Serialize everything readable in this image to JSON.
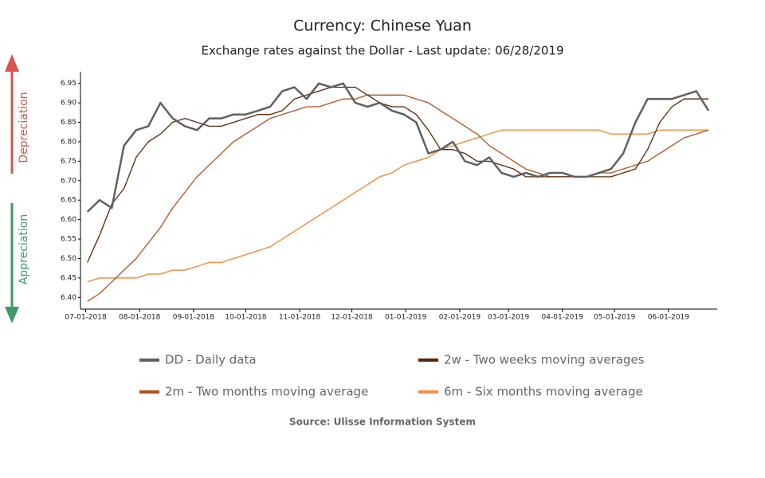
{
  "chart_data": {
    "type": "line",
    "title": "Currency: Chinese Yuan",
    "subtitle": "Exchange rates against the Dollar - Last update: 06/28/2019",
    "source": "Source: Ulisse Information System",
    "up_label": "Depreciation",
    "down_label": "Appreciation",
    "x": [
      "2018-07-02",
      "2018-07-09",
      "2018-07-16",
      "2018-07-23",
      "2018-07-30",
      "2018-08-06",
      "2018-08-13",
      "2018-08-20",
      "2018-08-27",
      "2018-09-03",
      "2018-09-10",
      "2018-09-17",
      "2018-09-24",
      "2018-10-01",
      "2018-10-08",
      "2018-10-15",
      "2018-10-22",
      "2018-10-29",
      "2018-11-05",
      "2018-11-12",
      "2018-11-19",
      "2018-11-26",
      "2018-12-03",
      "2018-12-10",
      "2018-12-17",
      "2018-12-24",
      "2018-12-31",
      "2019-01-07",
      "2019-01-14",
      "2019-01-21",
      "2019-01-28",
      "2019-02-04",
      "2019-02-11",
      "2019-02-18",
      "2019-02-25",
      "2019-03-04",
      "2019-03-11",
      "2019-03-18",
      "2019-03-25",
      "2019-04-01",
      "2019-04-08",
      "2019-04-15",
      "2019-04-22",
      "2019-04-29",
      "2019-05-06",
      "2019-05-13",
      "2019-05-20",
      "2019-05-27",
      "2019-06-03",
      "2019-06-10",
      "2019-06-17",
      "2019-06-24"
    ],
    "series": [
      {
        "name": "DD - Daily data",
        "color": "#606060",
        "width": 2.5,
        "values": [
          6.62,
          6.65,
          6.63,
          6.79,
          6.83,
          6.84,
          6.9,
          6.86,
          6.84,
          6.83,
          6.86,
          6.86,
          6.87,
          6.87,
          6.88,
          6.89,
          6.93,
          6.94,
          6.91,
          6.95,
          6.94,
          6.95,
          6.9,
          6.89,
          6.9,
          6.88,
          6.87,
          6.85,
          6.77,
          6.78,
          6.8,
          6.75,
          6.74,
          6.76,
          6.72,
          6.71,
          6.72,
          6.71,
          6.72,
          6.72,
          6.71,
          6.71,
          6.72,
          6.73,
          6.77,
          6.85,
          6.91,
          6.91,
          6.91,
          6.92,
          6.93,
          6.88
        ]
      },
      {
        "name": "2w - Two weeks moving averages",
        "color": "#5a2609",
        "width": 1.3,
        "values": [
          6.49,
          6.56,
          6.64,
          6.68,
          6.76,
          6.8,
          6.82,
          6.85,
          6.86,
          6.85,
          6.84,
          6.84,
          6.85,
          6.86,
          6.87,
          6.87,
          6.88,
          6.91,
          6.92,
          6.93,
          6.94,
          6.94,
          6.94,
          6.92,
          6.9,
          6.89,
          6.89,
          6.87,
          6.83,
          6.78,
          6.78,
          6.77,
          6.75,
          6.75,
          6.74,
          6.73,
          6.71,
          6.71,
          6.71,
          6.71,
          6.71,
          6.71,
          6.71,
          6.71,
          6.72,
          6.73,
          6.78,
          6.85,
          6.89,
          6.91,
          6.91,
          6.91
        ]
      },
      {
        "name": "2m - Two months moving average",
        "color": "#b0531c",
        "width": 1.3,
        "values": [
          6.39,
          6.41,
          6.44,
          6.47,
          6.5,
          6.54,
          6.58,
          6.63,
          6.67,
          6.71,
          6.74,
          6.77,
          6.8,
          6.82,
          6.84,
          6.86,
          6.87,
          6.88,
          6.89,
          6.89,
          6.9,
          6.91,
          6.91,
          6.92,
          6.92,
          6.92,
          6.92,
          6.91,
          6.9,
          6.88,
          6.86,
          6.84,
          6.82,
          6.79,
          6.77,
          6.75,
          6.73,
          6.72,
          6.71,
          6.71,
          6.71,
          6.71,
          6.72,
          6.72,
          6.73,
          6.74,
          6.75,
          6.77,
          6.79,
          6.81,
          6.82,
          6.83
        ]
      },
      {
        "name": "6m - Six months moving average",
        "color": "#f39048",
        "width": 1.5,
        "values": [
          6.44,
          6.45,
          6.45,
          6.45,
          6.45,
          6.46,
          6.46,
          6.47,
          6.47,
          6.48,
          6.49,
          6.49,
          6.5,
          6.51,
          6.52,
          6.53,
          6.55,
          6.57,
          6.59,
          6.61,
          6.63,
          6.65,
          6.67,
          6.69,
          6.71,
          6.72,
          6.74,
          6.75,
          6.76,
          6.78,
          6.79,
          6.8,
          6.81,
          6.82,
          6.83,
          6.83,
          6.83,
          6.83,
          6.83,
          6.83,
          6.83,
          6.83,
          6.83,
          6.82,
          6.82,
          6.82,
          6.82,
          6.83,
          6.83,
          6.83,
          6.83,
          6.83
        ]
      }
    ],
    "xlim": [
      "2018-06-28",
      "2019-06-29"
    ],
    "xticks": [
      {
        "value": "2018-07-01",
        "label": "07-01-2018"
      },
      {
        "value": "2018-08-01",
        "label": "08-01-2018"
      },
      {
        "value": "2018-09-01",
        "label": "09-01-2018"
      },
      {
        "value": "2018-10-01",
        "label": "10-01-2018"
      },
      {
        "value": "2018-11-01",
        "label": "11-01-2018"
      },
      {
        "value": "2018-12-01",
        "label": "12-01-2018"
      },
      {
        "value": "2019-01-01",
        "label": "01-01-2019"
      },
      {
        "value": "2019-02-01",
        "label": "02-01-2019"
      },
      {
        "value": "2019-03-01",
        "label": "03-01-2019"
      },
      {
        "value": "2019-04-01",
        "label": "04-01-2019"
      },
      {
        "value": "2019-05-01",
        "label": "05-01-2019"
      },
      {
        "value": "2019-06-01",
        "label": "06-01-2019"
      }
    ],
    "ylim": [
      6.37,
      6.98
    ],
    "yticks": [
      {
        "value": 6.4,
        "label": "6.40"
      },
      6.45,
      {
        "value": 6.5,
        "label": "6.50"
      },
      6.55,
      {
        "value": 6.6,
        "label": "6.60"
      },
      6.65,
      {
        "value": 6.7,
        "label": "6.70"
      },
      6.75,
      {
        "value": 6.8,
        "label": "6.80"
      },
      6.85,
      {
        "value": 6.9,
        "label": "6.90"
      },
      6.95
    ]
  }
}
